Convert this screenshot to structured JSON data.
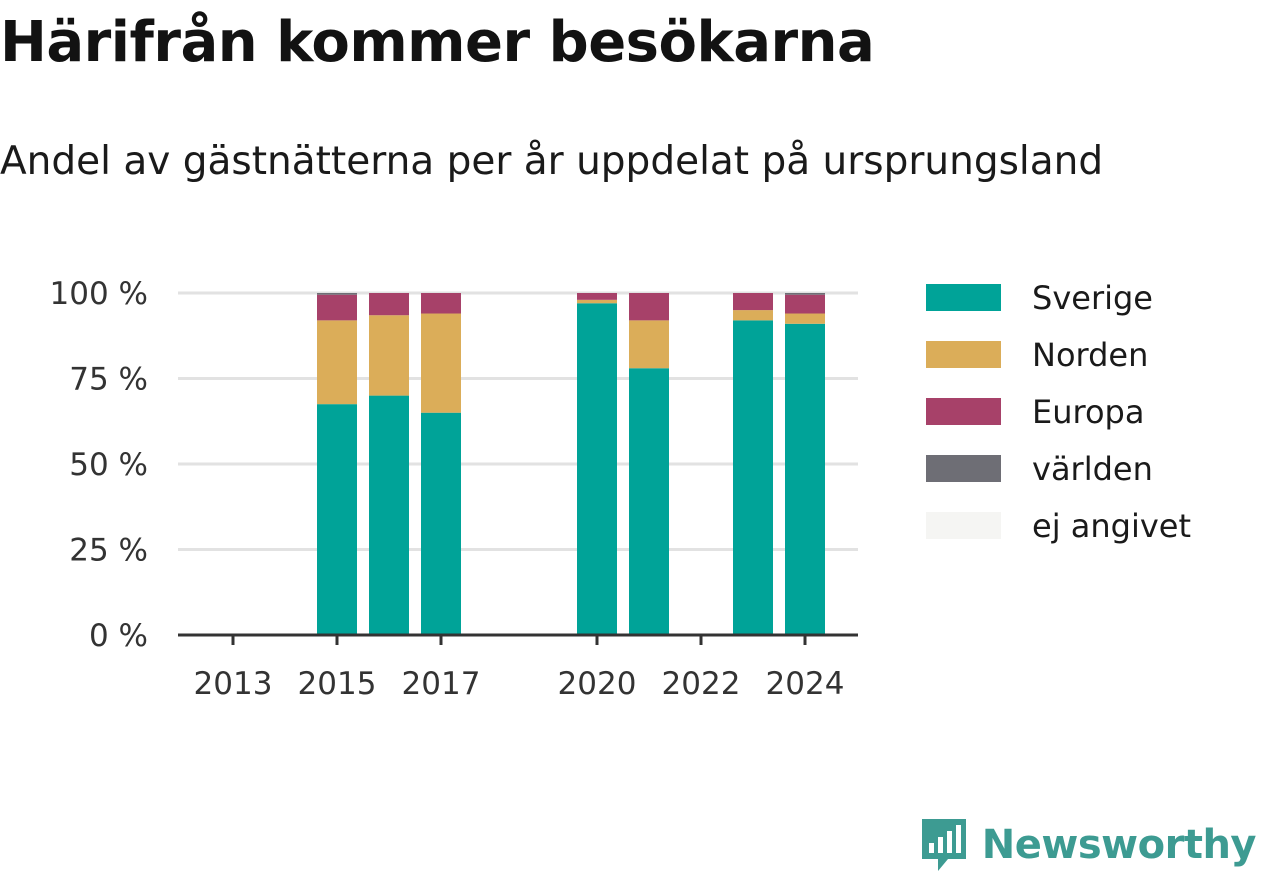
{
  "title": "Härifrån kommer besökarna",
  "subtitle": "Andel av gästnätterna per år uppdelat på ursprungsland",
  "colors": {
    "Sverige": "#00a398",
    "Norden": "#dbad59",
    "Europa": "#a74169",
    "världen": "#6e6e75",
    "ej angivet": "#f5f5f3",
    "grid": "#e2e2e2",
    "axis": "#333333"
  },
  "brand": {
    "name": "Newsworthy",
    "icon": "newsworthy-logo-icon",
    "color": "#3d9b92"
  },
  "chart_data": {
    "type": "bar",
    "stacked": true,
    "x": [
      2013,
      2014,
      2015,
      2016,
      2017,
      2018,
      2019,
      2020,
      2021,
      2022,
      2023,
      2024
    ],
    "x_tick_labels": [
      "2013",
      "2015",
      "2017",
      "2020",
      "2022",
      "2024"
    ],
    "y_tick_labels": [
      "0 %",
      "25 %",
      "50 %",
      "75 %",
      "100 %"
    ],
    "ylim": [
      0,
      100
    ],
    "grid": true,
    "legend_position": "right",
    "series": [
      {
        "name": "Sverige",
        "values": [
          null,
          null,
          67.5,
          70,
          65,
          null,
          null,
          97,
          78,
          null,
          92,
          91
        ]
      },
      {
        "name": "Norden",
        "values": [
          null,
          null,
          24.5,
          23.5,
          29,
          null,
          null,
          1,
          14,
          null,
          3,
          3
        ]
      },
      {
        "name": "Europa",
        "values": [
          null,
          null,
          7.5,
          6.5,
          6,
          null,
          null,
          2,
          8,
          null,
          5,
          5.5
        ]
      },
      {
        "name": "världen",
        "values": [
          null,
          null,
          0.5,
          0,
          0,
          null,
          null,
          0,
          0,
          null,
          0,
          0.5
        ]
      },
      {
        "name": "ej angivet",
        "values": [
          null,
          null,
          0,
          0,
          0,
          null,
          null,
          0,
          0,
          null,
          0,
          0
        ]
      }
    ]
  }
}
